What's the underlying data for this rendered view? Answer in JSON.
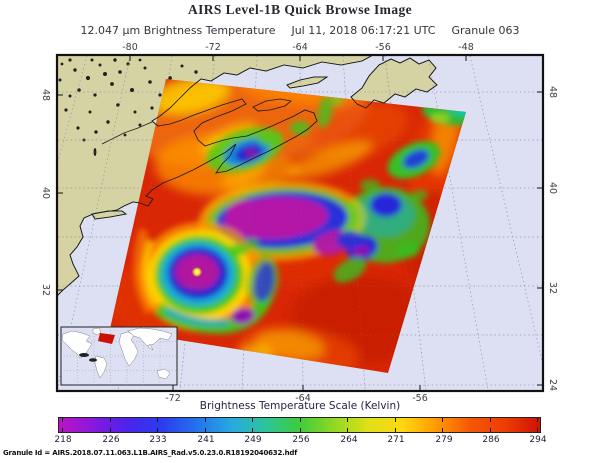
{
  "title": "AIRS Level-1B Quick Browse Image",
  "subtitle": {
    "measurement": "12.047 μm Brightness Temperature",
    "timestamp": "Jul 11, 2018 06:17:21 UTC",
    "granule": "Granule 063"
  },
  "map": {
    "top_axis": [
      "-80",
      "-72",
      "-64",
      "-56",
      "-48"
    ],
    "bottom_axis": [
      "-72",
      "-64",
      "-56"
    ],
    "left_axis": [
      "48",
      "40",
      "32"
    ],
    "right_axis": [
      "48",
      "40",
      "32",
      "24"
    ]
  },
  "colorbar": {
    "title": "Brightness Temperature Scale (Kelvin)",
    "unit": "Kelvin",
    "min": 218,
    "max": 294,
    "ticks": [
      "218",
      "226",
      "233",
      "241",
      "249",
      "256",
      "264",
      "271",
      "279",
      "286",
      "294"
    ],
    "gradient": [
      "#bb14c4",
      "#8818dc",
      "#4a24ec",
      "#2b3cee",
      "#2472ec",
      "#28a8e0",
      "#2cc49c",
      "#3ecc3c",
      "#90d824",
      "#e0e018",
      "#ffd810",
      "#ff9800",
      "#f55606",
      "#ee3c04",
      "#cc1204"
    ]
  },
  "colors": {
    "land": "#d5d2a3",
    "ocean": "#dce0f2",
    "swath_base": "#d92605",
    "inset_marker": "#cc1100"
  },
  "footer": {
    "granule_id": "Granule Id = AIRS.2018.07.11.063.L1B.AIRS_Rad.v5.0.23.0.R18192040632.hdf"
  },
  "chart_data": {
    "type": "heatmap",
    "title": "AIRS Level-1B Quick Browse Image",
    "subtitle": "12.047 μm Brightness Temperature, Jul 11, 2018 06:17:21 UTC, Granule 063",
    "scale_label": "Brightness Temperature Scale (Kelvin)",
    "scale_ticks": [
      218,
      226,
      233,
      241,
      249,
      256,
      264,
      271,
      279,
      286,
      294
    ],
    "x_ticks_longitude": [
      -80,
      -72,
      -64,
      -56,
      -48
    ],
    "y_ticks_latitude": [
      48,
      40,
      32,
      24
    ],
    "legend_position": "bottom",
    "notes": "Satellite IR swath over NW Atlantic showing a hurricane with cold cloud tops (purple ~218K) and warm ocean scene (red ~294K)"
  }
}
